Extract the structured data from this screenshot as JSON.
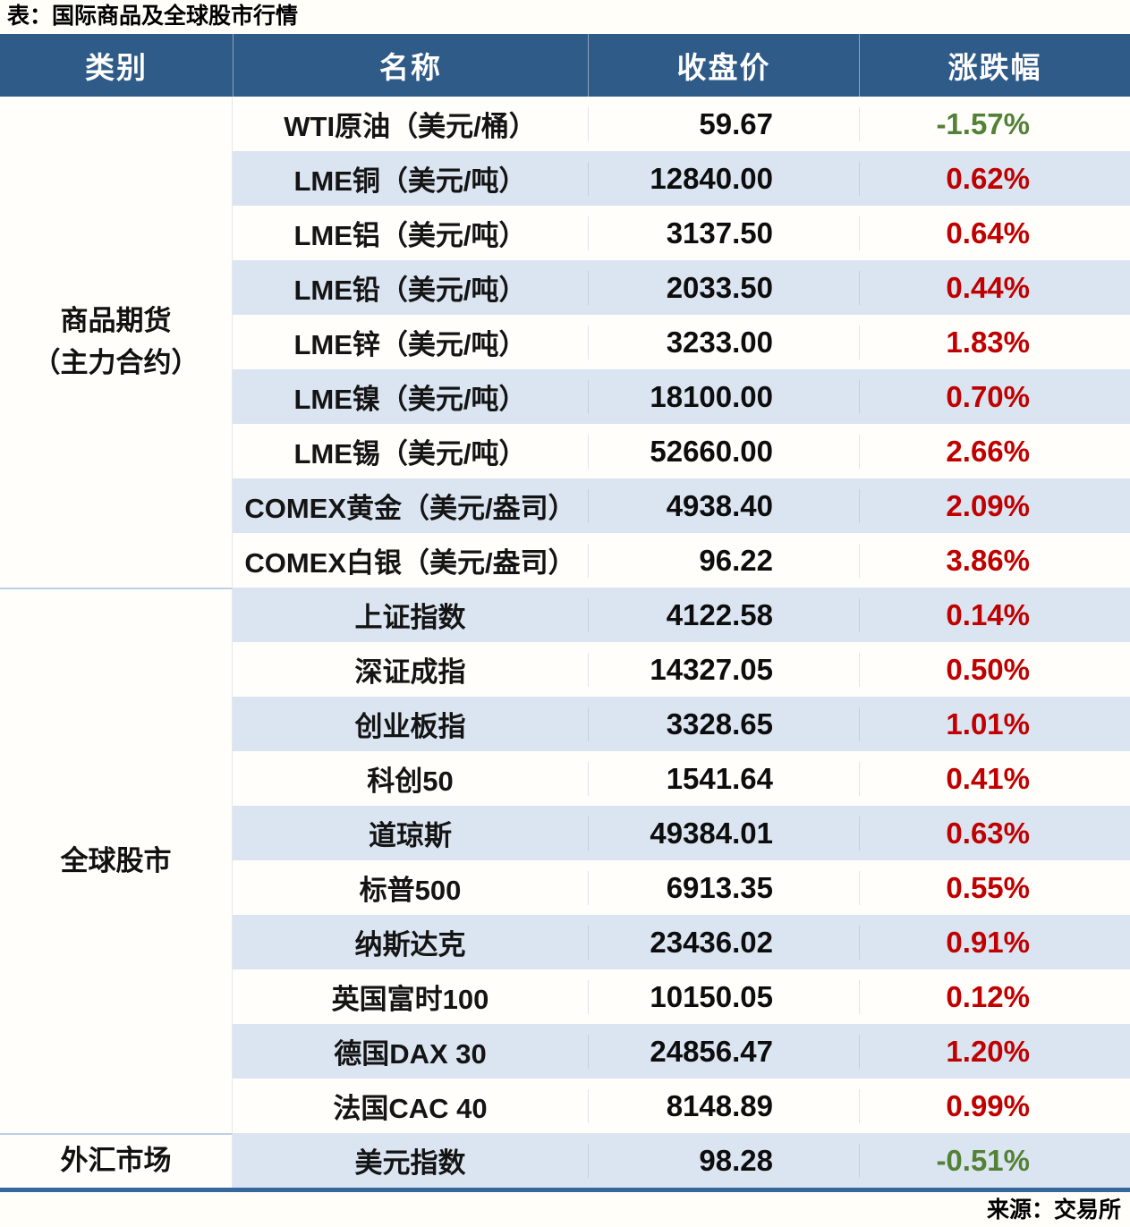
{
  "source_note": "来源：交易所",
  "colors": {
    "header_bg": "#2e5b88",
    "row_alt_bg": "#dbe5f1",
    "up_red": "#c00000",
    "down_green": "#538135",
    "bottom_border": "#35689d"
  },
  "chart_data": {
    "type": "table",
    "title": "表：国际商品及全球股市行情",
    "columns": [
      "类别",
      "名称",
      "收盘价",
      "涨跌幅"
    ],
    "groups": [
      {
        "category_lines": [
          "商品期货",
          "（主力合约）"
        ],
        "rows": [
          {
            "name": "WTI原油（美元/桶）",
            "close": "59.67",
            "change": "-1.57%"
          },
          {
            "name": "LME铜（美元/吨）",
            "close": "12840.00",
            "change": "0.62%"
          },
          {
            "name": "LME铝（美元/吨）",
            "close": "3137.50",
            "change": "0.64%"
          },
          {
            "name": "LME铅（美元/吨）",
            "close": "2033.50",
            "change": "0.44%"
          },
          {
            "name": "LME锌（美元/吨）",
            "close": "3233.00",
            "change": "1.83%"
          },
          {
            "name": "LME镍（美元/吨）",
            "close": "18100.00",
            "change": "0.70%"
          },
          {
            "name": "LME锡（美元/吨）",
            "close": "52660.00",
            "change": "2.66%"
          },
          {
            "name": "COMEX黄金（美元/盎司）",
            "close": "4938.40",
            "change": "2.09%"
          },
          {
            "name": "COMEX白银（美元/盎司）",
            "close": "96.22",
            "change": "3.86%"
          }
        ]
      },
      {
        "category_lines": [
          "全球股市"
        ],
        "rows": [
          {
            "name": "上证指数",
            "close": "4122.58",
            "change": "0.14%"
          },
          {
            "name": "深证成指",
            "close": "14327.05",
            "change": "0.50%"
          },
          {
            "name": "创业板指",
            "close": "3328.65",
            "change": "1.01%"
          },
          {
            "name": "科创50",
            "close": "1541.64",
            "change": "0.41%"
          },
          {
            "name": "道琼斯",
            "close": "49384.01",
            "change": "0.63%"
          },
          {
            "name": "标普500",
            "close": "6913.35",
            "change": "0.55%"
          },
          {
            "name": "纳斯达克",
            "close": "23436.02",
            "change": "0.91%"
          },
          {
            "name": "英国富时100",
            "close": "10150.05",
            "change": "0.12%"
          },
          {
            "name": "德国DAX 30",
            "close": "24856.47",
            "change": "1.20%"
          },
          {
            "name": "法国CAC 40",
            "close": "8148.89",
            "change": "0.99%"
          }
        ]
      },
      {
        "category_lines": [
          "外汇市场"
        ],
        "rows": [
          {
            "name": "美元指数",
            "close": "98.28",
            "change": "-0.51%"
          }
        ]
      }
    ]
  }
}
